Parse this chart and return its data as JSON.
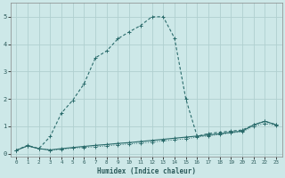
{
  "xlabel": "Humidex (Indice chaleur)",
  "background_color": "#cde8e8",
  "grid_color": "#b0d0d0",
  "line_color": "#2a6b6b",
  "xlim": [
    -0.5,
    23.5
  ],
  "ylim": [
    -0.1,
    5.5
  ],
  "xticks": [
    0,
    1,
    2,
    3,
    4,
    5,
    6,
    7,
    8,
    9,
    10,
    11,
    12,
    13,
    14,
    15,
    16,
    17,
    18,
    19,
    20,
    21,
    22,
    23
  ],
  "yticks": [
    0,
    1,
    2,
    3,
    4,
    5
  ],
  "series1_x": [
    0,
    1,
    2,
    3,
    4,
    5,
    6,
    7,
    8,
    9,
    10,
    11,
    12,
    13,
    14,
    15,
    16,
    17,
    18,
    19,
    20,
    21,
    22,
    23
  ],
  "series1_y": [
    0.12,
    0.28,
    0.18,
    0.13,
    0.18,
    0.22,
    0.26,
    0.3,
    0.33,
    0.37,
    0.4,
    0.44,
    0.48,
    0.52,
    0.56,
    0.6,
    0.64,
    0.68,
    0.72,
    0.78,
    0.82,
    1.05,
    1.18,
    1.05
  ],
  "series2_x": [
    0,
    1,
    2,
    3,
    4,
    5,
    6,
    7,
    8,
    9,
    10,
    11,
    12,
    13,
    14,
    15,
    16,
    17,
    18,
    19,
    20,
    21,
    22,
    23
  ],
  "series2_y": [
    0.12,
    0.3,
    0.18,
    0.62,
    1.48,
    1.95,
    2.55,
    3.5,
    3.75,
    4.2,
    4.45,
    4.68,
    5.0,
    5.0,
    4.22,
    2.0,
    0.63,
    0.73,
    0.78,
    0.82,
    0.86,
    1.05,
    1.18,
    1.05
  ],
  "series3_x": [
    0,
    1,
    2,
    3,
    4,
    5,
    6,
    7,
    8,
    9,
    10,
    11,
    12,
    13,
    14,
    15,
    16,
    17,
    18,
    19,
    20,
    21,
    22,
    23
  ],
  "series3_y": [
    0.12,
    0.28,
    0.18,
    0.13,
    0.15,
    0.2,
    0.22,
    0.25,
    0.28,
    0.32,
    0.35,
    0.38,
    0.42,
    0.46,
    0.5,
    0.54,
    0.6,
    0.65,
    0.7,
    0.75,
    0.8,
    1.0,
    1.1,
    1.02
  ]
}
